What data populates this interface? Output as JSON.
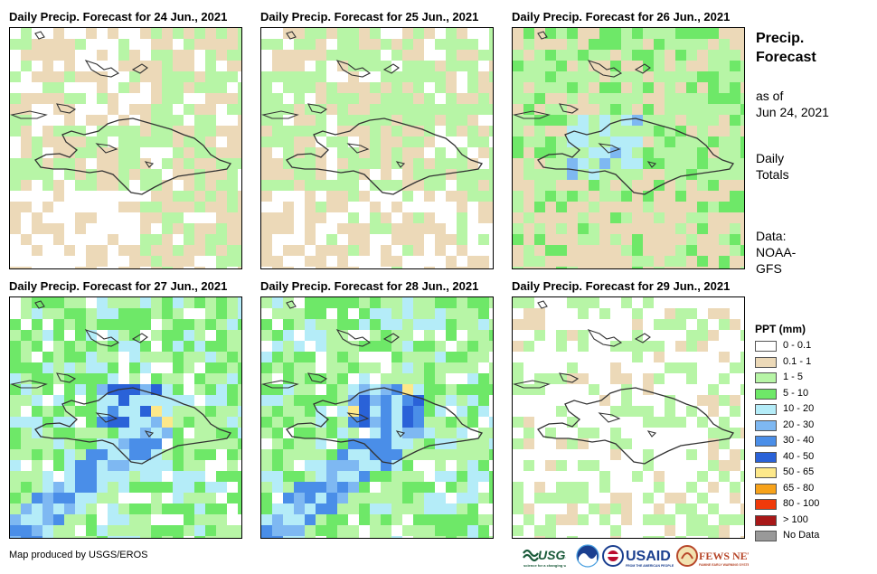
{
  "panels": [
    {
      "title": "Daily Precip. Forecast for 24 Jun., 2021",
      "seed": 11,
      "dominant": "dry"
    },
    {
      "title": "Daily Precip. Forecast for 25 Jun., 2021",
      "seed": 23,
      "dominant": "light"
    },
    {
      "title": "Daily Precip. Forecast for 26 Jun., 2021",
      "seed": 37,
      "dominant": "mixed"
    },
    {
      "title": "Daily Precip. Forecast for 27 Jun., 2021",
      "seed": 41,
      "dominant": "wet"
    },
    {
      "title": "Daily Precip. Forecast for 28 Jun., 2021",
      "seed": 53,
      "dominant": "wet"
    },
    {
      "title": "Daily Precip. Forecast for 29 Jun., 2021",
      "seed": 67,
      "dominant": "none"
    }
  ],
  "side": {
    "title_line1": "Precip.",
    "title_line2": "Forecast",
    "asof_line1": "as of",
    "asof_line2": "Jun 24, 2021",
    "daily_line1": "Daily",
    "daily_line2": "Totals",
    "data_line1": "Data:",
    "data_line2": "NOAA-",
    "data_line3": "GFS"
  },
  "legend": {
    "title": "PPT (mm)",
    "items": [
      {
        "label": "0 - 0.1",
        "color": "#ffffff"
      },
      {
        "label": "0.1 - 1",
        "color": "#ecd9b8"
      },
      {
        "label": "1 - 5",
        "color": "#b7f5a6"
      },
      {
        "label": "5 - 10",
        "color": "#6ee868"
      },
      {
        "label": "10 - 20",
        "color": "#b4ecf8"
      },
      {
        "label": "20 - 30",
        "color": "#7eb8f2"
      },
      {
        "label": "30 - 40",
        "color": "#4a8ee8"
      },
      {
        "label": "40 - 50",
        "color": "#2a62d8"
      },
      {
        "label": "50 - 65",
        "color": "#fde88a"
      },
      {
        "label": "65 - 80",
        "color": "#f7a21a"
      },
      {
        "label": "80 - 100",
        "color": "#f03a0a"
      },
      {
        "label": "> 100",
        "color": "#a81818"
      },
      {
        "label": "No Data",
        "color": "#999999"
      }
    ]
  },
  "footer": {
    "credit": "Map produced by USGS/EROS"
  },
  "logos": {
    "usgs": "USGS",
    "usaid": "USAID",
    "fewsnet": "FEWS NET"
  }
}
